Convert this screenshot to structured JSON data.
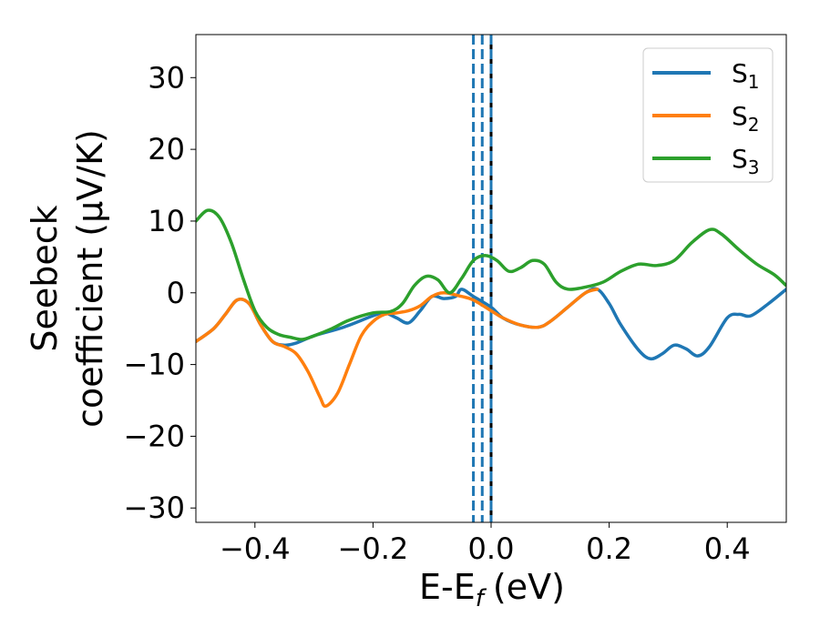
{
  "chart_data": {
    "type": "line",
    "xlabel": "E-E",
    "xlabel_sub": "f",
    "xlabel_unit": "(eV)",
    "ylabel_line1": "Seebeck",
    "ylabel_line2": "coefficient  (μV/K)",
    "xlim": [
      -0.5,
      0.5
    ],
    "ylim": [
      -32,
      36
    ],
    "xticks": [
      -0.4,
      -0.2,
      0.0,
      0.2,
      0.4
    ],
    "xtick_labels": [
      "−0.4",
      "−0.2",
      "0.0",
      "0.2",
      "0.4"
    ],
    "yticks": [
      -30,
      -20,
      -10,
      0,
      10,
      20,
      30
    ],
    "ytick_labels": [
      "−30",
      "−20",
      "−10",
      "0",
      "10",
      "20",
      "30"
    ],
    "grid": false,
    "legend_position": "top-right",
    "vlines": {
      "solid": {
        "x": 0.0,
        "color": "#000000"
      },
      "dashed": {
        "x": [
          -0.03,
          -0.015,
          0.0
        ],
        "color": "#1f77b4"
      }
    },
    "series": [
      {
        "name": "S",
        "subscript": "1",
        "color": "#1f77b4",
        "points": [
          [
            -0.5,
            -6.8
          ],
          [
            -0.47,
            -5.0
          ],
          [
            -0.45,
            -3.0
          ],
          [
            -0.43,
            -1.0
          ],
          [
            -0.41,
            -1.5
          ],
          [
            -0.39,
            -4.5
          ],
          [
            -0.37,
            -6.8
          ],
          [
            -0.35,
            -7.3
          ],
          [
            -0.33,
            -7.0
          ],
          [
            -0.3,
            -6.0
          ],
          [
            -0.25,
            -4.8
          ],
          [
            -0.2,
            -3.2
          ],
          [
            -0.18,
            -2.8
          ],
          [
            -0.16,
            -3.5
          ],
          [
            -0.14,
            -4.2
          ],
          [
            -0.12,
            -2.5
          ],
          [
            -0.1,
            -0.5
          ],
          [
            -0.08,
            -0.8
          ],
          [
            -0.06,
            -0.5
          ],
          [
            -0.05,
            0.5
          ],
          [
            -0.03,
            -0.5
          ],
          [
            0.0,
            -2.0
          ],
          [
            0.02,
            -3.5
          ],
          [
            0.05,
            -4.5
          ],
          [
            0.08,
            -4.8
          ],
          [
            0.1,
            -4.0
          ],
          [
            0.13,
            -2.0
          ],
          [
            0.16,
            0.0
          ],
          [
            0.18,
            0.5
          ],
          [
            0.2,
            -1.5
          ],
          [
            0.22,
            -4.5
          ],
          [
            0.25,
            -8.0
          ],
          [
            0.27,
            -9.2
          ],
          [
            0.29,
            -8.5
          ],
          [
            0.31,
            -7.3
          ],
          [
            0.33,
            -7.8
          ],
          [
            0.35,
            -8.8
          ],
          [
            0.37,
            -7.5
          ],
          [
            0.4,
            -3.5
          ],
          [
            0.42,
            -3.0
          ],
          [
            0.44,
            -3.2
          ],
          [
            0.47,
            -1.5
          ],
          [
            0.5,
            0.5
          ]
        ]
      },
      {
        "name": "S",
        "subscript": "2",
        "color": "#ff7f0e",
        "points": [
          [
            -0.5,
            -6.8
          ],
          [
            -0.47,
            -5.0
          ],
          [
            -0.45,
            -3.0
          ],
          [
            -0.43,
            -1.0
          ],
          [
            -0.41,
            -1.5
          ],
          [
            -0.39,
            -4.5
          ],
          [
            -0.37,
            -6.8
          ],
          [
            -0.35,
            -7.5
          ],
          [
            -0.33,
            -8.5
          ],
          [
            -0.31,
            -11.0
          ],
          [
            -0.29,
            -14.5
          ],
          [
            -0.28,
            -15.8
          ],
          [
            -0.26,
            -14.0
          ],
          [
            -0.24,
            -10.0
          ],
          [
            -0.22,
            -6.0
          ],
          [
            -0.2,
            -4.0
          ],
          [
            -0.18,
            -3.0
          ],
          [
            -0.16,
            -2.8
          ],
          [
            -0.14,
            -2.5
          ],
          [
            -0.12,
            -1.8
          ],
          [
            -0.1,
            -0.5
          ],
          [
            -0.08,
            0.0
          ],
          [
            -0.05,
            -0.5
          ],
          [
            -0.03,
            -1.0
          ],
          [
            0.0,
            -2.5
          ],
          [
            0.02,
            -3.5
          ],
          [
            0.05,
            -4.5
          ],
          [
            0.08,
            -4.8
          ],
          [
            0.1,
            -4.0
          ],
          [
            0.13,
            -2.0
          ],
          [
            0.16,
            0.0
          ],
          [
            0.18,
            0.5
          ]
        ]
      },
      {
        "name": "S",
        "subscript": "3",
        "color": "#2ca02c",
        "points": [
          [
            -0.5,
            10.0
          ],
          [
            -0.48,
            11.5
          ],
          [
            -0.46,
            10.5
          ],
          [
            -0.44,
            7.0
          ],
          [
            -0.42,
            2.0
          ],
          [
            -0.4,
            -2.5
          ],
          [
            -0.38,
            -4.8
          ],
          [
            -0.36,
            -5.8
          ],
          [
            -0.34,
            -6.2
          ],
          [
            -0.32,
            -6.5
          ],
          [
            -0.3,
            -6.0
          ],
          [
            -0.27,
            -5.0
          ],
          [
            -0.24,
            -3.8
          ],
          [
            -0.2,
            -2.8
          ],
          [
            -0.17,
            -2.6
          ],
          [
            -0.15,
            -1.5
          ],
          [
            -0.13,
            1.0
          ],
          [
            -0.11,
            2.3
          ],
          [
            -0.09,
            1.8
          ],
          [
            -0.07,
            0.0
          ],
          [
            -0.05,
            2.0
          ],
          [
            -0.03,
            4.5
          ],
          [
            -0.01,
            5.2
          ],
          [
            0.01,
            4.5
          ],
          [
            0.03,
            3.0
          ],
          [
            0.05,
            3.5
          ],
          [
            0.07,
            4.5
          ],
          [
            0.09,
            4.0
          ],
          [
            0.11,
            1.5
          ],
          [
            0.13,
            0.5
          ],
          [
            0.16,
            0.8
          ],
          [
            0.19,
            1.5
          ],
          [
            0.22,
            3.0
          ],
          [
            0.25,
            4.0
          ],
          [
            0.28,
            3.8
          ],
          [
            0.31,
            4.5
          ],
          [
            0.34,
            7.0
          ],
          [
            0.37,
            8.8
          ],
          [
            0.39,
            8.2
          ],
          [
            0.42,
            6.0
          ],
          [
            0.45,
            4.0
          ],
          [
            0.48,
            2.5
          ],
          [
            0.5,
            1.0
          ]
        ]
      }
    ]
  }
}
